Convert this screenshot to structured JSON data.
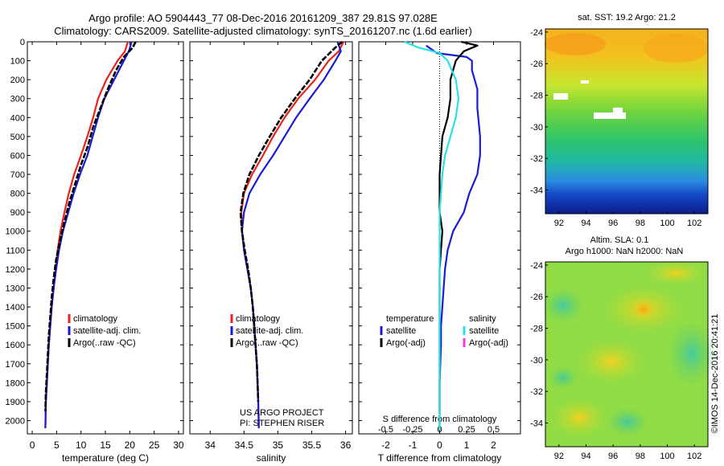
{
  "header": {
    "line1": "Argo profile: AO 5904443_77 08-Dec-2016 20161209_387 29.81S 97.028E",
    "line2": "Climatology: CARS2009. Satellite-adjusted climatology: synTS_20161207.nc (1.6d earlier)"
  },
  "sst_title": "sat. SST: 19.2 Argo: 21.2",
  "sla_title1": "Altim. SLA: 0.1",
  "sla_title2": "Argo h1000: NaN h2000: NaN",
  "vertical_stamp": "©IMOS 14-Dec-2016 20:41:21",
  "project_credit": {
    "line1": "US ARGO PROJECT",
    "line2": "PI: STEPHEN RISER"
  },
  "colors": {
    "climatology": "#e8231c",
    "satellite": "#1b1bd6",
    "argo": "#000000",
    "satellite_s": "#29e0e8",
    "argo_s": "#ff33dd"
  },
  "chart_data": [
    {
      "type": "line",
      "id": "temperature",
      "xlabel": "temperature (deg C)",
      "xlim": [
        -1,
        31
      ],
      "ylim": [
        2070,
        0
      ],
      "xticks": [
        0,
        5,
        10,
        15,
        20,
        25,
        30
      ],
      "yticks": [
        0,
        100,
        200,
        300,
        400,
        500,
        600,
        700,
        800,
        900,
        1000,
        1100,
        1200,
        1300,
        1400,
        1500,
        1600,
        1700,
        1800,
        1900,
        2000
      ],
      "legend": [
        "climatology",
        "satellite-adj. clim.",
        "Argo(..raw -QC)"
      ],
      "series": [
        {
          "name": "climatology",
          "color": "#e8231c",
          "style": "solid",
          "x": [
            19.6,
            19.0,
            17.5,
            15.2,
            13.5,
            12.5,
            11.3,
            10.0,
            8.6,
            7.5,
            6.6,
            5.8,
            5.2,
            4.8,
            4.4,
            4.0,
            3.7,
            3.4,
            3.2,
            3.0,
            2.8,
            2.7
          ],
          "y": [
            0,
            50,
            100,
            200,
            300,
            400,
            500,
            600,
            700,
            800,
            900,
            1000,
            1100,
            1200,
            1300,
            1400,
            1500,
            1600,
            1700,
            1800,
            1900,
            2040
          ]
        },
        {
          "name": "satellite-adj. clim.",
          "color": "#1b1bd6",
          "style": "solid",
          "x": [
            20.4,
            19.8,
            18.8,
            16.8,
            14.8,
            13.5,
            12.4,
            11.3,
            9.8,
            8.5,
            7.4,
            6.3,
            5.5,
            4.9,
            4.4,
            4.0,
            3.7,
            3.4,
            3.2,
            3.0,
            2.8,
            2.7
          ],
          "y": [
            0,
            50,
            100,
            200,
            300,
            400,
            500,
            600,
            700,
            800,
            900,
            1000,
            1100,
            1200,
            1300,
            1400,
            1500,
            1600,
            1700,
            1800,
            1900,
            2040
          ]
        },
        {
          "name": "Argo(..raw -QC)",
          "color": "#000000",
          "style": "dashed",
          "x": [
            21.2,
            20.6,
            18.8,
            17.2,
            15.5,
            14.0,
            12.5,
            11.4,
            10.0,
            8.8,
            7.6,
            6.6,
            5.7,
            4.9,
            4.4,
            4.0,
            3.7,
            3.4,
            3.2,
            3.0,
            2.8,
            2.7
          ],
          "y": [
            0,
            30,
            80,
            150,
            250,
            350,
            450,
            550,
            650,
            750,
            850,
            950,
            1050,
            1150,
            1250,
            1350,
            1450,
            1550,
            1650,
            1750,
            1850,
            1950
          ]
        }
      ]
    },
    {
      "type": "line",
      "id": "salinity",
      "xlabel": "salinity",
      "xlim": [
        33.7,
        36.1
      ],
      "ylim": [
        2070,
        0
      ],
      "xticks": [
        34,
        34.5,
        35,
        35.5,
        36
      ],
      "legend": [
        "climatology",
        "satellite-adj. clim.",
        "Argo(..raw -QC)"
      ],
      "series": [
        {
          "name": "climatology",
          "color": "#e8231c",
          "style": "solid",
          "x": [
            35.97,
            35.9,
            35.75,
            35.55,
            35.3,
            35.1,
            34.93,
            34.78,
            34.62,
            34.5,
            34.46,
            34.47,
            34.5,
            34.55,
            34.6,
            34.63,
            34.65,
            34.67,
            34.69,
            34.7,
            34.71,
            34.72
          ],
          "y": [
            0,
            50,
            100,
            200,
            300,
            400,
            500,
            600,
            700,
            800,
            900,
            1000,
            1100,
            1200,
            1300,
            1400,
            1500,
            1600,
            1700,
            1800,
            1900,
            2040
          ]
        },
        {
          "name": "satellite-adj. clim.",
          "color": "#1b1bd6",
          "style": "solid",
          "x": [
            35.88,
            35.93,
            35.85,
            35.68,
            35.47,
            35.27,
            35.1,
            34.93,
            34.74,
            34.58,
            34.5,
            34.47,
            34.5,
            34.55,
            34.6,
            34.63,
            34.65,
            34.67,
            34.69,
            34.7,
            34.71,
            34.72
          ],
          "y": [
            0,
            50,
            100,
            200,
            300,
            400,
            500,
            600,
            700,
            800,
            900,
            1000,
            1100,
            1200,
            1300,
            1400,
            1500,
            1600,
            1700,
            1800,
            1900,
            2040
          ]
        },
        {
          "name": "Argo(..raw -QC)",
          "color": "#000000",
          "style": "dashed",
          "x": [
            35.95,
            35.85,
            35.65,
            35.47,
            35.25,
            35.05,
            34.88,
            34.72,
            34.58,
            34.49,
            34.45,
            34.47,
            34.51,
            34.56,
            34.6,
            34.63,
            34.65,
            34.67,
            34.69,
            34.7,
            34.71
          ],
          "y": [
            0,
            30,
            100,
            200,
            300,
            400,
            500,
            600,
            700,
            800,
            900,
            1000,
            1100,
            1200,
            1300,
            1400,
            1500,
            1600,
            1700,
            1800,
            1900
          ]
        }
      ]
    },
    {
      "type": "line",
      "id": "difference",
      "xlabel": "T difference from climatology",
      "top_label": "S difference from climatology",
      "xlim": [
        -3,
        3
      ],
      "ylim": [
        2070,
        0
      ],
      "xticks": [
        -2,
        -1,
        0,
        1,
        2
      ],
      "top_xticks": [
        "-0.5",
        "-0.25",
        "0",
        "0.25",
        "0.5"
      ],
      "legend_temperature": {
        "title": "temperature",
        "items": [
          "satellite",
          "Argo(-adj)"
        ]
      },
      "legend_salinity": {
        "title": "salinity",
        "items": [
          "satellite",
          "Argo(-adj)"
        ]
      },
      "series": [
        {
          "name": "T satellite",
          "color": "#1b1bd6",
          "style": "solid",
          "x": [
            -0.5,
            -0.1,
            1.0,
            1.2,
            1.2,
            1.4,
            1.4,
            1.5,
            1.5,
            1.4,
            1.1,
            0.9,
            0.5,
            0.3,
            0.2,
            0.15,
            0.1,
            0.05,
            0.05,
            0.0,
            0.0
          ],
          "y": [
            20,
            60,
            80,
            100,
            150,
            250,
            350,
            500,
            600,
            700,
            800,
            900,
            1000,
            1100,
            1200,
            1300,
            1400,
            1500,
            1600,
            1800,
            1950
          ]
        },
        {
          "name": "T Argo(-adj)",
          "color": "#000000",
          "style": "solid",
          "x": [
            0.8,
            1.4,
            0.9,
            0.6,
            0.4,
            0.4,
            0.3,
            0.1,
            0.0,
            0.0,
            0.1,
            0.0,
            0.0,
            0.0,
            0.0,
            0.0,
            0.0
          ],
          "y": [
            0,
            20,
            50,
            100,
            200,
            300,
            400,
            500,
            700,
            900,
            1000,
            1200,
            1400,
            1600,
            1800,
            1950,
            2050
          ]
        },
        {
          "name": "S satellite",
          "color": "#29e0e8",
          "style": "solid",
          "x": [
            -1.3,
            -0.8,
            0.0,
            0.3,
            0.6,
            0.7,
            0.6,
            0.4,
            0.2,
            0.1,
            0.05,
            0.0,
            0.0,
            0.0,
            0.0,
            0.0
          ],
          "y": [
            0,
            30,
            60,
            100,
            200,
            300,
            400,
            500,
            600,
            700,
            800,
            900,
            1100,
            1500,
            1800,
            2050
          ]
        }
      ]
    },
    {
      "type": "heatmap",
      "id": "sst_map",
      "xticks": [
        92,
        94,
        96,
        98,
        100,
        102
      ],
      "yticks": [
        -24,
        -26,
        -28,
        -30,
        -32,
        -34
      ],
      "xlim": [
        91,
        103
      ],
      "ylim": [
        -35.5,
        -23.8
      ]
    },
    {
      "type": "heatmap",
      "id": "sla_map",
      "xticks": [
        92,
        94,
        96,
        98,
        100,
        102
      ],
      "yticks": [
        -24,
        -26,
        -28,
        -30,
        -32,
        -34
      ],
      "xlim": [
        91,
        103
      ],
      "ylim": [
        -35.5,
        -23.8
      ]
    }
  ]
}
